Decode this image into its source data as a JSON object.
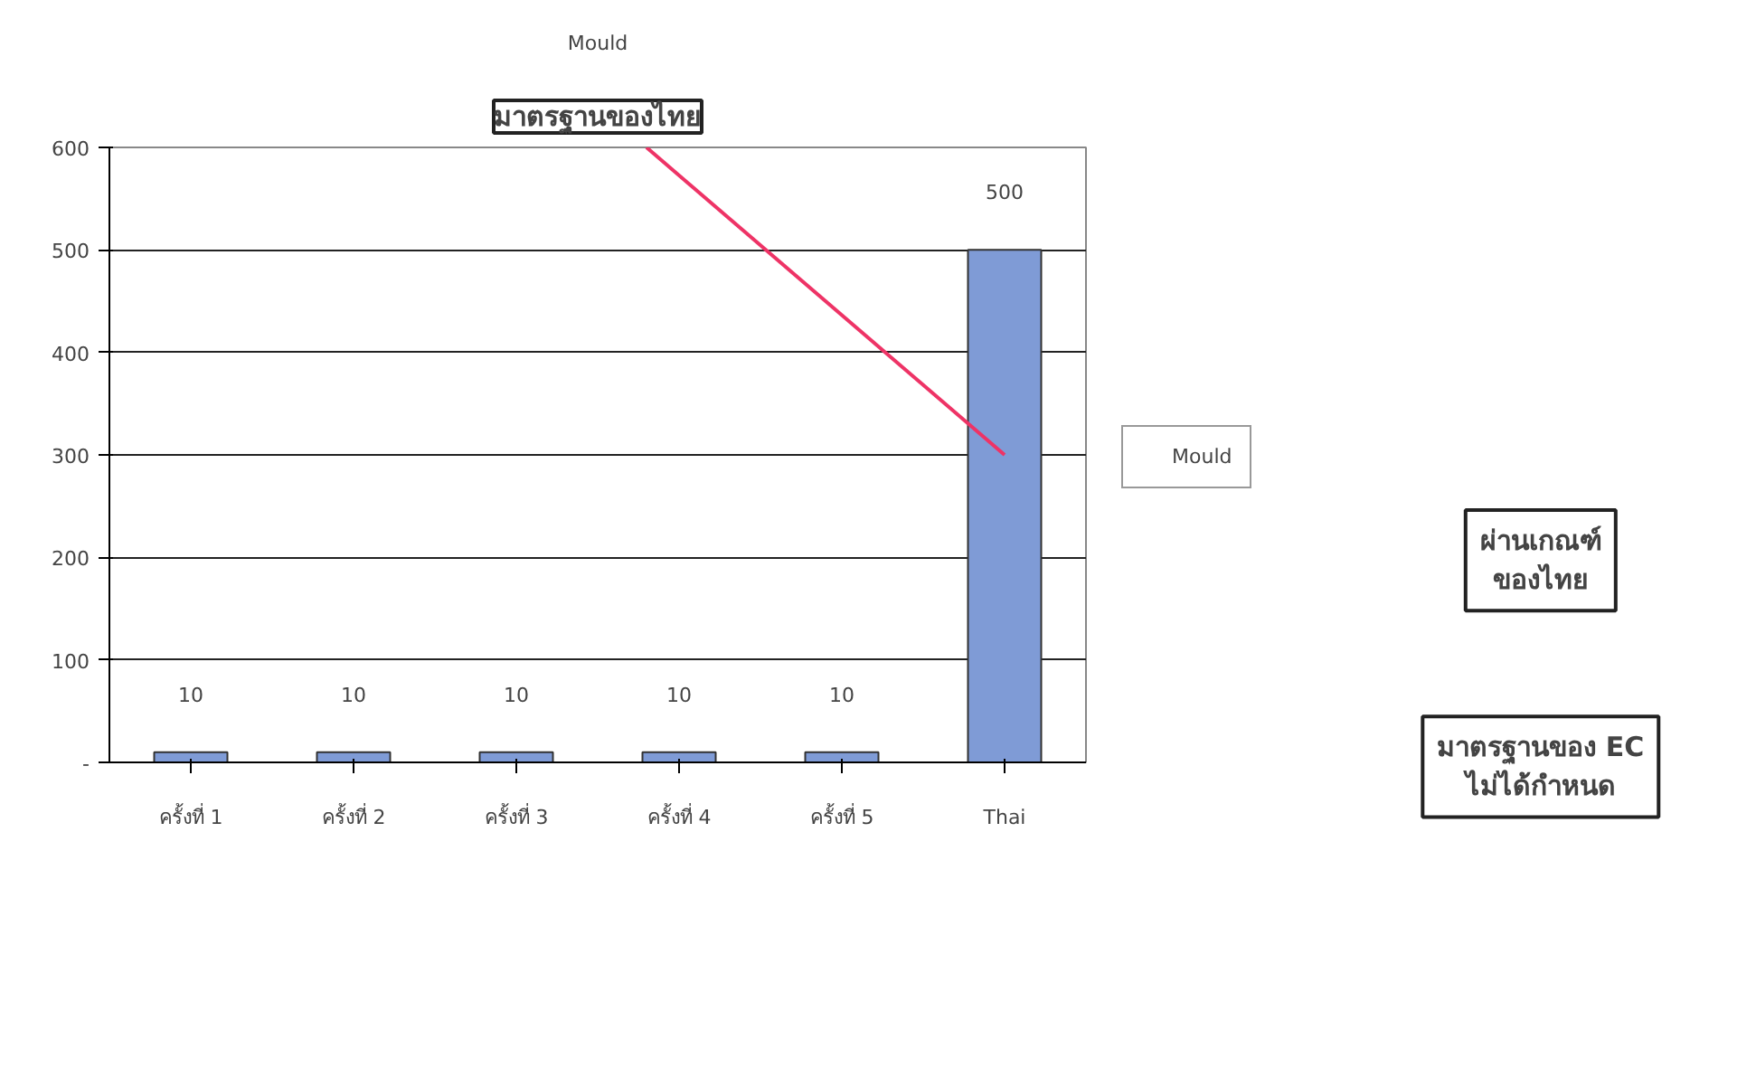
{
  "chart_data": {
    "type": "bar",
    "title": "Mould",
    "categories": [
      "ครั้งที่ 1",
      "ครั้งที่ 2",
      "ครั้งที่ 3",
      "ครั้งที่ 4",
      "ครั้งที่ 5",
      "Thai"
    ],
    "series": [
      {
        "name": "Mould",
        "color": "#7f9bd6",
        "values": [
          10,
          10,
          10,
          10,
          10,
          500
        ]
      }
    ],
    "data_labels": true,
    "ylim": [
      0,
      600
    ],
    "yticks": [
      {
        "value": 0,
        "label": "-"
      },
      100,
      200,
      300,
      400,
      500,
      600
    ],
    "grid": "y",
    "legend": "right",
    "annotations": [
      "มาตรฐานของไทย",
      "ผ่านเกณฑ์\nของไทย",
      "มาตรฐานของ EC\nไม่ได้กำหนด"
    ]
  }
}
